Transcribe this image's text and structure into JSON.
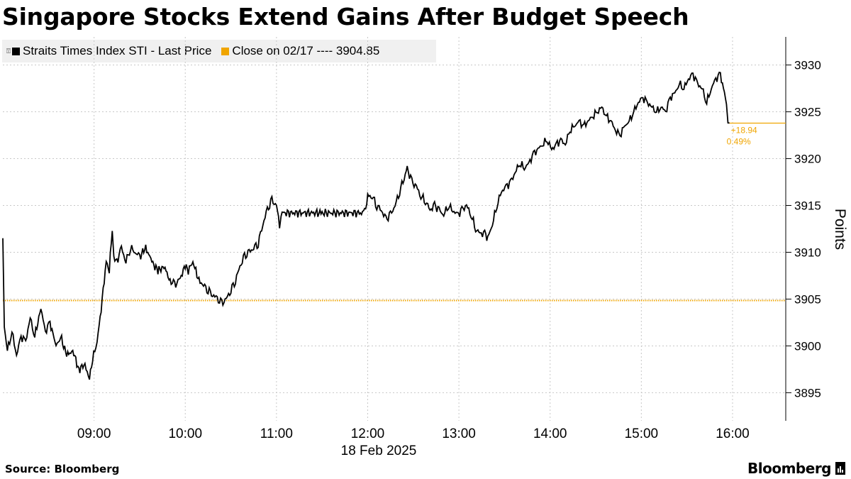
{
  "title": "Singapore Stocks Extend Gains After Budget Speech",
  "legend": [
    {
      "label": "Straits Times Index STI - Last Price",
      "color": "#000000"
    },
    {
      "label": "Close on 02/17 ---- 3904.85",
      "color": "#f0a500"
    }
  ],
  "source": "Source: Bloomberg",
  "brand": "Bloomberg",
  "chart_data": {
    "type": "line",
    "title": "Singapore Stocks Extend Gains After Budget Speech",
    "xlabel": "18 Feb 2025",
    "ylabel": "Points",
    "x_ticks": [
      "09:00",
      "10:00",
      "11:00",
      "12:00",
      "13:00",
      "14:00",
      "15:00",
      "16:00"
    ],
    "y_ticks": [
      3895,
      3900,
      3905,
      3910,
      3915,
      3920,
      3925,
      3930
    ],
    "ylim": [
      3892,
      3933
    ],
    "xlim": [
      "08:00",
      "16:35"
    ],
    "grid": true,
    "legend_position": "top-left",
    "series": [
      {
        "name": "Straits Times Index STI - Last Price",
        "color": "#000000",
        "points": [
          [
            "08:00",
            3911.5
          ],
          [
            "08:01",
            3902.0
          ],
          [
            "08:03",
            3899.5
          ],
          [
            "08:06",
            3901.5
          ],
          [
            "08:09",
            3899.0
          ],
          [
            "08:12",
            3901.0
          ],
          [
            "08:15",
            3900.5
          ],
          [
            "08:18",
            3903.0
          ],
          [
            "08:21",
            3901.0
          ],
          [
            "08:25",
            3904.0
          ],
          [
            "08:28",
            3901.5
          ],
          [
            "08:31",
            3902.5
          ],
          [
            "08:35",
            3900.0
          ],
          [
            "08:38",
            3901.0
          ],
          [
            "08:42",
            3899.0
          ],
          [
            "08:46",
            3899.5
          ],
          [
            "08:50",
            3897.5
          ],
          [
            "08:54",
            3898.0
          ],
          [
            "08:57",
            3896.5
          ],
          [
            "08:59",
            3898.5
          ],
          [
            "09:02",
            3900.5
          ],
          [
            "09:04",
            3903.0
          ],
          [
            "09:06",
            3906.0
          ],
          [
            "09:08",
            3909.0
          ],
          [
            "09:10",
            3908.0
          ],
          [
            "09:12",
            3912.5
          ],
          [
            "09:13",
            3909.5
          ],
          [
            "09:15",
            3909.0
          ],
          [
            "09:18",
            3910.5
          ],
          [
            "09:21",
            3909.0
          ],
          [
            "09:24",
            3910.5
          ],
          [
            "09:27",
            3910.0
          ],
          [
            "09:30",
            3909.5
          ],
          [
            "09:34",
            3910.5
          ],
          [
            "09:38",
            3909.0
          ],
          [
            "09:42",
            3908.0
          ],
          [
            "09:46",
            3908.5
          ],
          [
            "09:50",
            3907.0
          ],
          [
            "09:53",
            3906.5
          ],
          [
            "09:56",
            3907.0
          ],
          [
            "10:00",
            3908.5
          ],
          [
            "10:02",
            3908.0
          ],
          [
            "10:05",
            3909.0
          ],
          [
            "10:07",
            3908.0
          ],
          [
            "10:09",
            3907.0
          ],
          [
            "10:12",
            3906.5
          ],
          [
            "10:15",
            3906.0
          ],
          [
            "10:18",
            3905.5
          ],
          [
            "10:21",
            3905.0
          ],
          [
            "10:24",
            3904.5
          ],
          [
            "10:27",
            3905.0
          ],
          [
            "10:30",
            3906.0
          ],
          [
            "10:33",
            3907.0
          ],
          [
            "10:36",
            3908.5
          ],
          [
            "10:39",
            3909.5
          ],
          [
            "10:42",
            3910.0
          ],
          [
            "10:45",
            3910.5
          ],
          [
            "10:48",
            3911.0
          ],
          [
            "10:51",
            3913.0
          ],
          [
            "10:54",
            3914.5
          ],
          [
            "10:57",
            3915.5
          ],
          [
            "11:00",
            3915.0
          ],
          [
            "11:02",
            3913.0
          ],
          [
            "11:03",
            3914.2
          ],
          [
            "11:30",
            3914.2
          ],
          [
            "11:58",
            3914.2
          ],
          [
            "12:00",
            3916.0
          ],
          [
            "12:03",
            3916.0
          ],
          [
            "12:06",
            3915.0
          ],
          [
            "12:09",
            3914.5
          ],
          [
            "12:12",
            3913.5
          ],
          [
            "12:15",
            3914.0
          ],
          [
            "12:18",
            3915.0
          ],
          [
            "12:21",
            3916.5
          ],
          [
            "12:24",
            3918.0
          ],
          [
            "12:26",
            3919.0
          ],
          [
            "12:29",
            3917.5
          ],
          [
            "12:32",
            3917.0
          ],
          [
            "12:35",
            3916.0
          ],
          [
            "12:38",
            3915.5
          ],
          [
            "12:41",
            3914.5
          ],
          [
            "12:44",
            3915.0
          ],
          [
            "12:47",
            3914.5
          ],
          [
            "12:50",
            3914.0
          ],
          [
            "12:53",
            3915.0
          ],
          [
            "12:56",
            3914.5
          ],
          [
            "12:59",
            3914.0
          ],
          [
            "13:02",
            3914.5
          ],
          [
            "13:05",
            3915.0
          ],
          [
            "13:08",
            3914.0
          ],
          [
            "13:11",
            3912.5
          ],
          [
            "13:14",
            3912.0
          ],
          [
            "13:17",
            3912.0
          ],
          [
            "13:19",
            3911.5
          ],
          [
            "13:22",
            3913.0
          ],
          [
            "13:25",
            3915.0
          ],
          [
            "13:28",
            3916.5
          ],
          [
            "13:31",
            3917.0
          ],
          [
            "13:34",
            3917.5
          ],
          [
            "13:37",
            3918.5
          ],
          [
            "13:40",
            3919.5
          ],
          [
            "13:43",
            3919.0
          ],
          [
            "13:46",
            3919.5
          ],
          [
            "13:49",
            3920.5
          ],
          [
            "13:52",
            3921.0
          ],
          [
            "13:55",
            3921.5
          ],
          [
            "13:58",
            3922.0
          ],
          [
            "14:01",
            3921.0
          ],
          [
            "14:04",
            3921.5
          ],
          [
            "14:07",
            3922.0
          ],
          [
            "14:10",
            3921.5
          ],
          [
            "14:13",
            3923.0
          ],
          [
            "14:16",
            3923.5
          ],
          [
            "14:19",
            3924.0
          ],
          [
            "14:22",
            3923.5
          ],
          [
            "14:25",
            3924.0
          ],
          [
            "14:28",
            3924.5
          ],
          [
            "14:31",
            3925.0
          ],
          [
            "14:34",
            3925.5
          ],
          [
            "14:37",
            3924.5
          ],
          [
            "14:40",
            3924.0
          ],
          [
            "14:43",
            3923.0
          ],
          [
            "14:46",
            3922.5
          ],
          [
            "14:49",
            3923.5
          ],
          [
            "14:52",
            3924.0
          ],
          [
            "14:55",
            3925.0
          ],
          [
            "14:58",
            3926.0
          ],
          [
            "15:01",
            3926.5
          ],
          [
            "15:04",
            3926.0
          ],
          [
            "15:07",
            3925.5
          ],
          [
            "15:10",
            3925.0
          ],
          [
            "15:13",
            3925.5
          ],
          [
            "15:16",
            3925.0
          ],
          [
            "15:19",
            3926.5
          ],
          [
            "15:22",
            3927.0
          ],
          [
            "15:25",
            3928.0
          ],
          [
            "15:28",
            3927.5
          ],
          [
            "15:31",
            3928.5
          ],
          [
            "15:34",
            3929.0
          ],
          [
            "15:37",
            3928.0
          ],
          [
            "15:40",
            3927.5
          ],
          [
            "15:43",
            3926.0
          ],
          [
            "15:46",
            3927.5
          ],
          [
            "15:49",
            3928.5
          ],
          [
            "15:52",
            3929.0
          ],
          [
            "15:54",
            3927.5
          ],
          [
            "15:56",
            3926.0
          ],
          [
            "15:57",
            3924.0
          ],
          [
            "15:58",
            3923.8
          ]
        ]
      },
      {
        "name": "Close on 02/17 ---- 3904.85",
        "color": "#f0a500",
        "reference_line": 3904.85
      }
    ],
    "annotations": [
      {
        "text": "+18.94",
        "at": [
          "15:58",
          3923.79
        ]
      },
      {
        "text": "0.49%",
        "at": [
          "15:58",
          3923.79
        ]
      }
    ]
  }
}
